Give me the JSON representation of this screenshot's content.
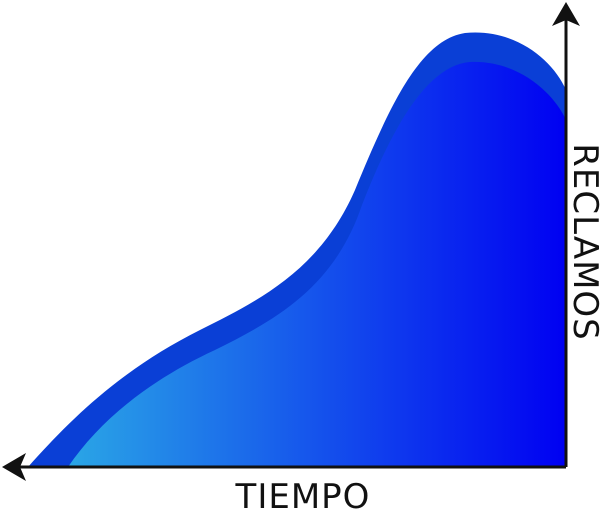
{
  "axes": {
    "x_label": "TIEMPO",
    "y_label": "RECLAMOS"
  },
  "colors": {
    "background": "#ffffff",
    "axis": "#111111",
    "outer_band": "#0a3fd6",
    "fill_light": "#2aa6e6",
    "fill_dark": "#0000f2"
  }
}
